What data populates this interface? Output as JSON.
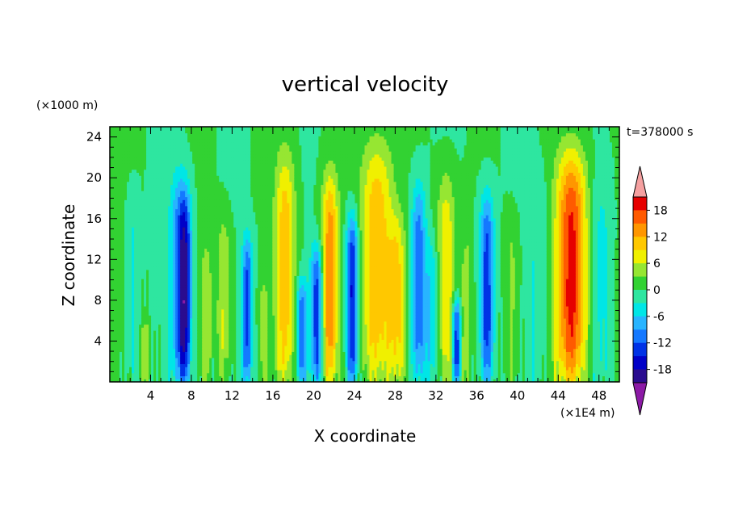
{
  "chart_data": {
    "type": "heatmap",
    "title": "vertical velocity",
    "xlabel": "X coordinate",
    "ylabel": "Z coordinate",
    "x_unit": "(×1E4 m)",
    "y_unit": "(×1000 m)",
    "time_label": "t=378000 s",
    "xlim": [
      0,
      50
    ],
    "ylim": [
      0,
      25
    ],
    "x_ticks": [
      4,
      8,
      12,
      16,
      20,
      24,
      28,
      32,
      36,
      40,
      44,
      48
    ],
    "y_ticks": [
      4,
      8,
      12,
      16,
      20,
      24
    ],
    "x_tick_labels": [
      "4",
      "8",
      "12",
      "16",
      "20",
      "24",
      "28",
      "32",
      "36",
      "40",
      "44",
      "48"
    ],
    "y_tick_labels": [
      "4",
      "8",
      "12",
      "16",
      "20",
      "24"
    ],
    "colorbar": {
      "levels": [
        -21,
        -18,
        -15,
        -12,
        -9,
        -6,
        -3,
        0,
        3,
        6,
        9,
        12,
        15,
        18,
        21
      ],
      "tick_values": [
        18,
        12,
        6,
        0,
        -6,
        -12,
        -18
      ],
      "tick_labels": [
        "18",
        "12",
        "6",
        "0",
        "-6",
        "-12",
        "-18"
      ],
      "colors": [
        "#6a0dad",
        "#2a0c8f",
        "#0000c8",
        "#0032e6",
        "#1478ff",
        "#28b4ff",
        "#00e6e6",
        "#2ee6a0",
        "#32d232",
        "#96e632",
        "#f0f000",
        "#ffc800",
        "#ff9600",
        "#ff5a00",
        "#e60000",
        "#f5a0a0"
      ],
      "under_color": "#8c1aa6",
      "over_color": "#f5a0a0"
    },
    "features": [
      {
        "x": 0.8,
        "zmax": 22,
        "amp": 2,
        "width": 0.6,
        "sign": 1
      },
      {
        "x": 2.2,
        "zmax": 18,
        "amp": -4,
        "width": 0.7,
        "sign": -1
      },
      {
        "x": 3.5,
        "zmax": 6,
        "amp": 5,
        "width": 0.5,
        "sign": 1
      },
      {
        "x": 6.8,
        "zmax": 20,
        "amp": -10,
        "width": 0.9,
        "sign": -1
      },
      {
        "x": 7.4,
        "zmax": 18,
        "amp": -14,
        "width": 0.6,
        "sign": -1
      },
      {
        "x": 9.5,
        "zmax": 14,
        "amp": 4,
        "width": 0.6,
        "sign": 1
      },
      {
        "x": 11.2,
        "zmax": 16,
        "amp": 6,
        "width": 0.7,
        "sign": 1
      },
      {
        "x": 13.5,
        "zmax": 14,
        "amp": -13,
        "width": 0.5,
        "sign": -1
      },
      {
        "x": 15.0,
        "zmax": 10,
        "amp": 4,
        "width": 0.5,
        "sign": 1
      },
      {
        "x": 17.2,
        "zmax": 22,
        "amp": 11,
        "width": 1.0,
        "sign": 1
      },
      {
        "x": 18.8,
        "zmax": 10,
        "amp": -11,
        "width": 0.5,
        "sign": -1
      },
      {
        "x": 20.3,
        "zmax": 13,
        "amp": -14,
        "width": 0.6,
        "sign": -1
      },
      {
        "x": 21.6,
        "zmax": 20,
        "amp": 14,
        "width": 0.8,
        "sign": 1
      },
      {
        "x": 23.8,
        "zmax": 16,
        "amp": -17,
        "width": 0.6,
        "sign": -1
      },
      {
        "x": 26.2,
        "zmax": 23,
        "amp": 12,
        "width": 1.6,
        "sign": 1
      },
      {
        "x": 28.2,
        "zmax": 16,
        "amp": 8,
        "width": 0.8,
        "sign": 1
      },
      {
        "x": 30.3,
        "zmax": 19,
        "amp": -12,
        "width": 0.7,
        "sign": -1
      },
      {
        "x": 31.6,
        "zmax": 14,
        "amp": -6,
        "width": 0.6,
        "sign": -1
      },
      {
        "x": 33.0,
        "zmax": 20,
        "amp": 9,
        "width": 0.9,
        "sign": 1
      },
      {
        "x": 34.0,
        "zmax": 8,
        "amp": -15,
        "width": 0.4,
        "sign": -1
      },
      {
        "x": 35.0,
        "zmax": 14,
        "amp": 5,
        "width": 0.5,
        "sign": 1
      },
      {
        "x": 37.0,
        "zmax": 18,
        "amp": -14,
        "width": 0.7,
        "sign": -1
      },
      {
        "x": 39.5,
        "zmax": 16,
        "amp": 4,
        "width": 0.8,
        "sign": 1
      },
      {
        "x": 42.0,
        "zmax": 20,
        "amp": -3,
        "width": 1.2,
        "sign": -1
      },
      {
        "x": 45.3,
        "zmax": 22,
        "amp": 19,
        "width": 1.5,
        "sign": 1
      },
      {
        "x": 48.2,
        "zmax": 20,
        "amp": -4,
        "width": 1.0,
        "sign": -1
      }
    ]
  }
}
